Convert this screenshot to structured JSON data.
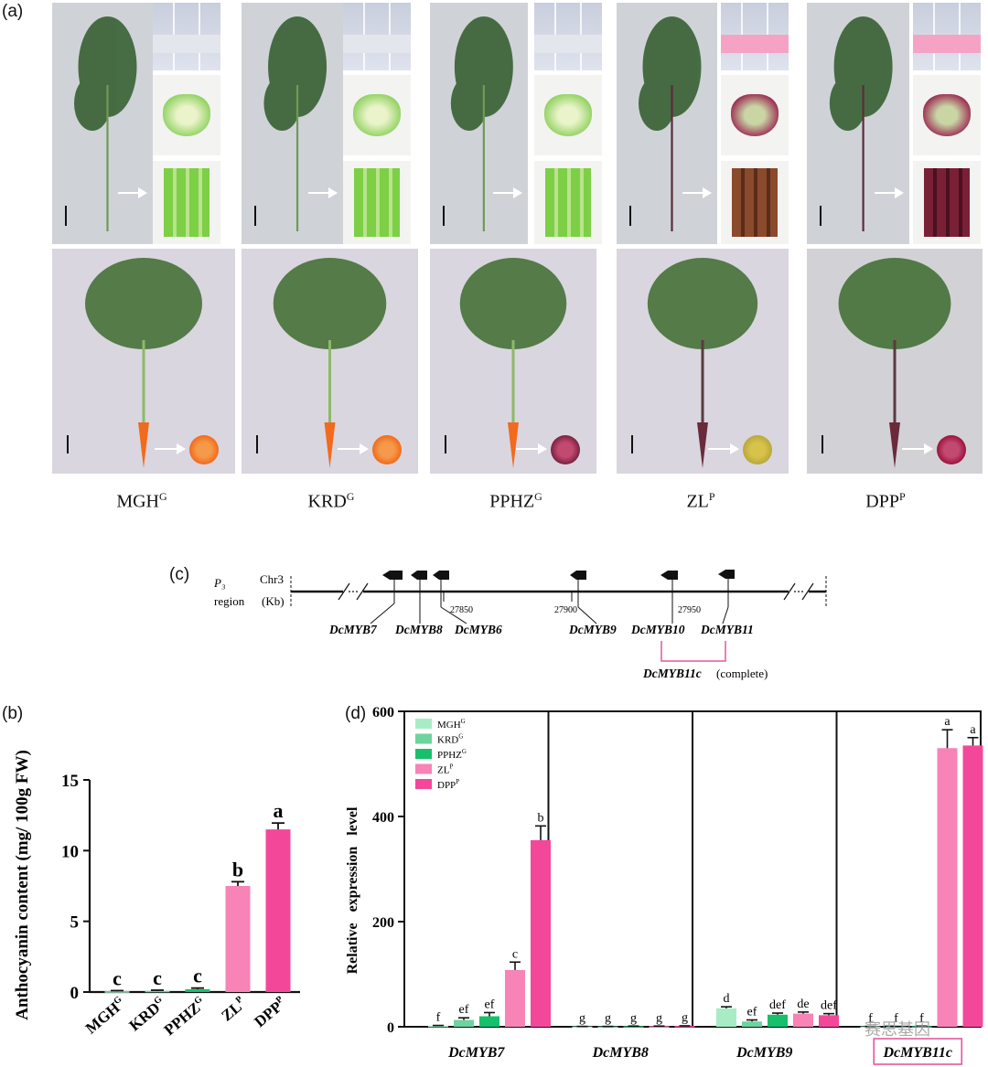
{
  "labels": {
    "a": "(a)",
    "b": "(b)",
    "c": "(c)",
    "d": "(d)"
  },
  "cultivars": [
    {
      "name": "MGH",
      "sup": "G"
    },
    {
      "name": "KRD",
      "sup": "G"
    },
    {
      "name": "PPHZ",
      "sup": "G"
    },
    {
      "name": "ZL",
      "sup": "P"
    },
    {
      "name": "DPP",
      "sup": "P"
    }
  ],
  "colors": {
    "MGH": "#a8ecc6",
    "KRD": "#6fd39e",
    "PPHZ": "#17c06a",
    "ZL": "#f783b7",
    "DPP": "#f3489a",
    "bracket": "#e4589c",
    "green_cut": "#8fd15f",
    "purple_cut": "#9b2b52",
    "orange_root": "#f26a1d"
  },
  "gene_map": {
    "region_line1": "P₃",
    "region_line2": "region",
    "chr": "Chr3",
    "unit": "(Kb)",
    "ticks": [
      "27850",
      "27900",
      "27950"
    ],
    "genes": [
      "DcMYB7",
      "DcMYB8",
      "DcMYB6",
      "DcMYB9",
      "DcMYB10",
      "DcMYB11"
    ],
    "bracket_gene": "DcMYB11c",
    "bracket_note": "(complete)"
  },
  "chart_data": [
    {
      "type": "bar",
      "ylabel": "Anthocyanin content (mg/ 100g FW)",
      "ylim": [
        0,
        15
      ],
      "yticks": [
        "0",
        "5",
        "10",
        "15"
      ],
      "categories": [
        "MGH",
        "KRD",
        "PPHZ",
        "ZL",
        "DPP"
      ],
      "category_sups": [
        "G",
        "G",
        "G",
        "P",
        "P"
      ],
      "values": [
        0.05,
        0.08,
        0.2,
        7.5,
        11.5
      ],
      "errors": [
        0.05,
        0.05,
        0.08,
        0.3,
        0.45
      ],
      "letters": [
        "c",
        "c",
        "c",
        "b",
        "a"
      ]
    },
    {
      "type": "bar",
      "ylabel": "Relative   expression   level",
      "ylim": [
        0,
        600
      ],
      "yticks": [
        "0",
        "200",
        "400",
        "600"
      ],
      "groups": [
        "DcMYB7",
        "DcMYB8",
        "DcMYB9",
        "DcMYB11c"
      ],
      "series": [
        {
          "name": "MGH",
          "sup": "G",
          "values": [
            2,
            0.5,
            35,
            0.5
          ],
          "errors": [
            0.5,
            0.2,
            3,
            0.2
          ],
          "letters": [
            "f",
            "g",
            "d",
            "f"
          ]
        },
        {
          "name": "KRD",
          "sup": "G",
          "values": [
            13,
            0.5,
            10,
            0.5
          ],
          "errors": [
            4,
            0.2,
            3,
            0.2
          ],
          "letters": [
            "ef",
            "g",
            "ef",
            "f"
          ]
        },
        {
          "name": "PPHZ",
          "sup": "G",
          "values": [
            20,
            1,
            23,
            1
          ],
          "errors": [
            7,
            0.3,
            3,
            0.3
          ],
          "letters": [
            "ef",
            "g",
            "def",
            "f"
          ]
        },
        {
          "name": "ZL",
          "sup": "P",
          "values": [
            108,
            1,
            25,
            530
          ],
          "errors": [
            15,
            0.3,
            3,
            35
          ],
          "letters": [
            "c",
            "g",
            "de",
            "a"
          ]
        },
        {
          "name": "DPP",
          "sup": "P",
          "values": [
            355,
            1.5,
            22,
            535
          ],
          "errors": [
            27,
            0.3,
            3,
            15
          ],
          "letters": [
            "b",
            "g",
            "def",
            "a"
          ]
        }
      ]
    }
  ],
  "watermark": "赛思基因"
}
